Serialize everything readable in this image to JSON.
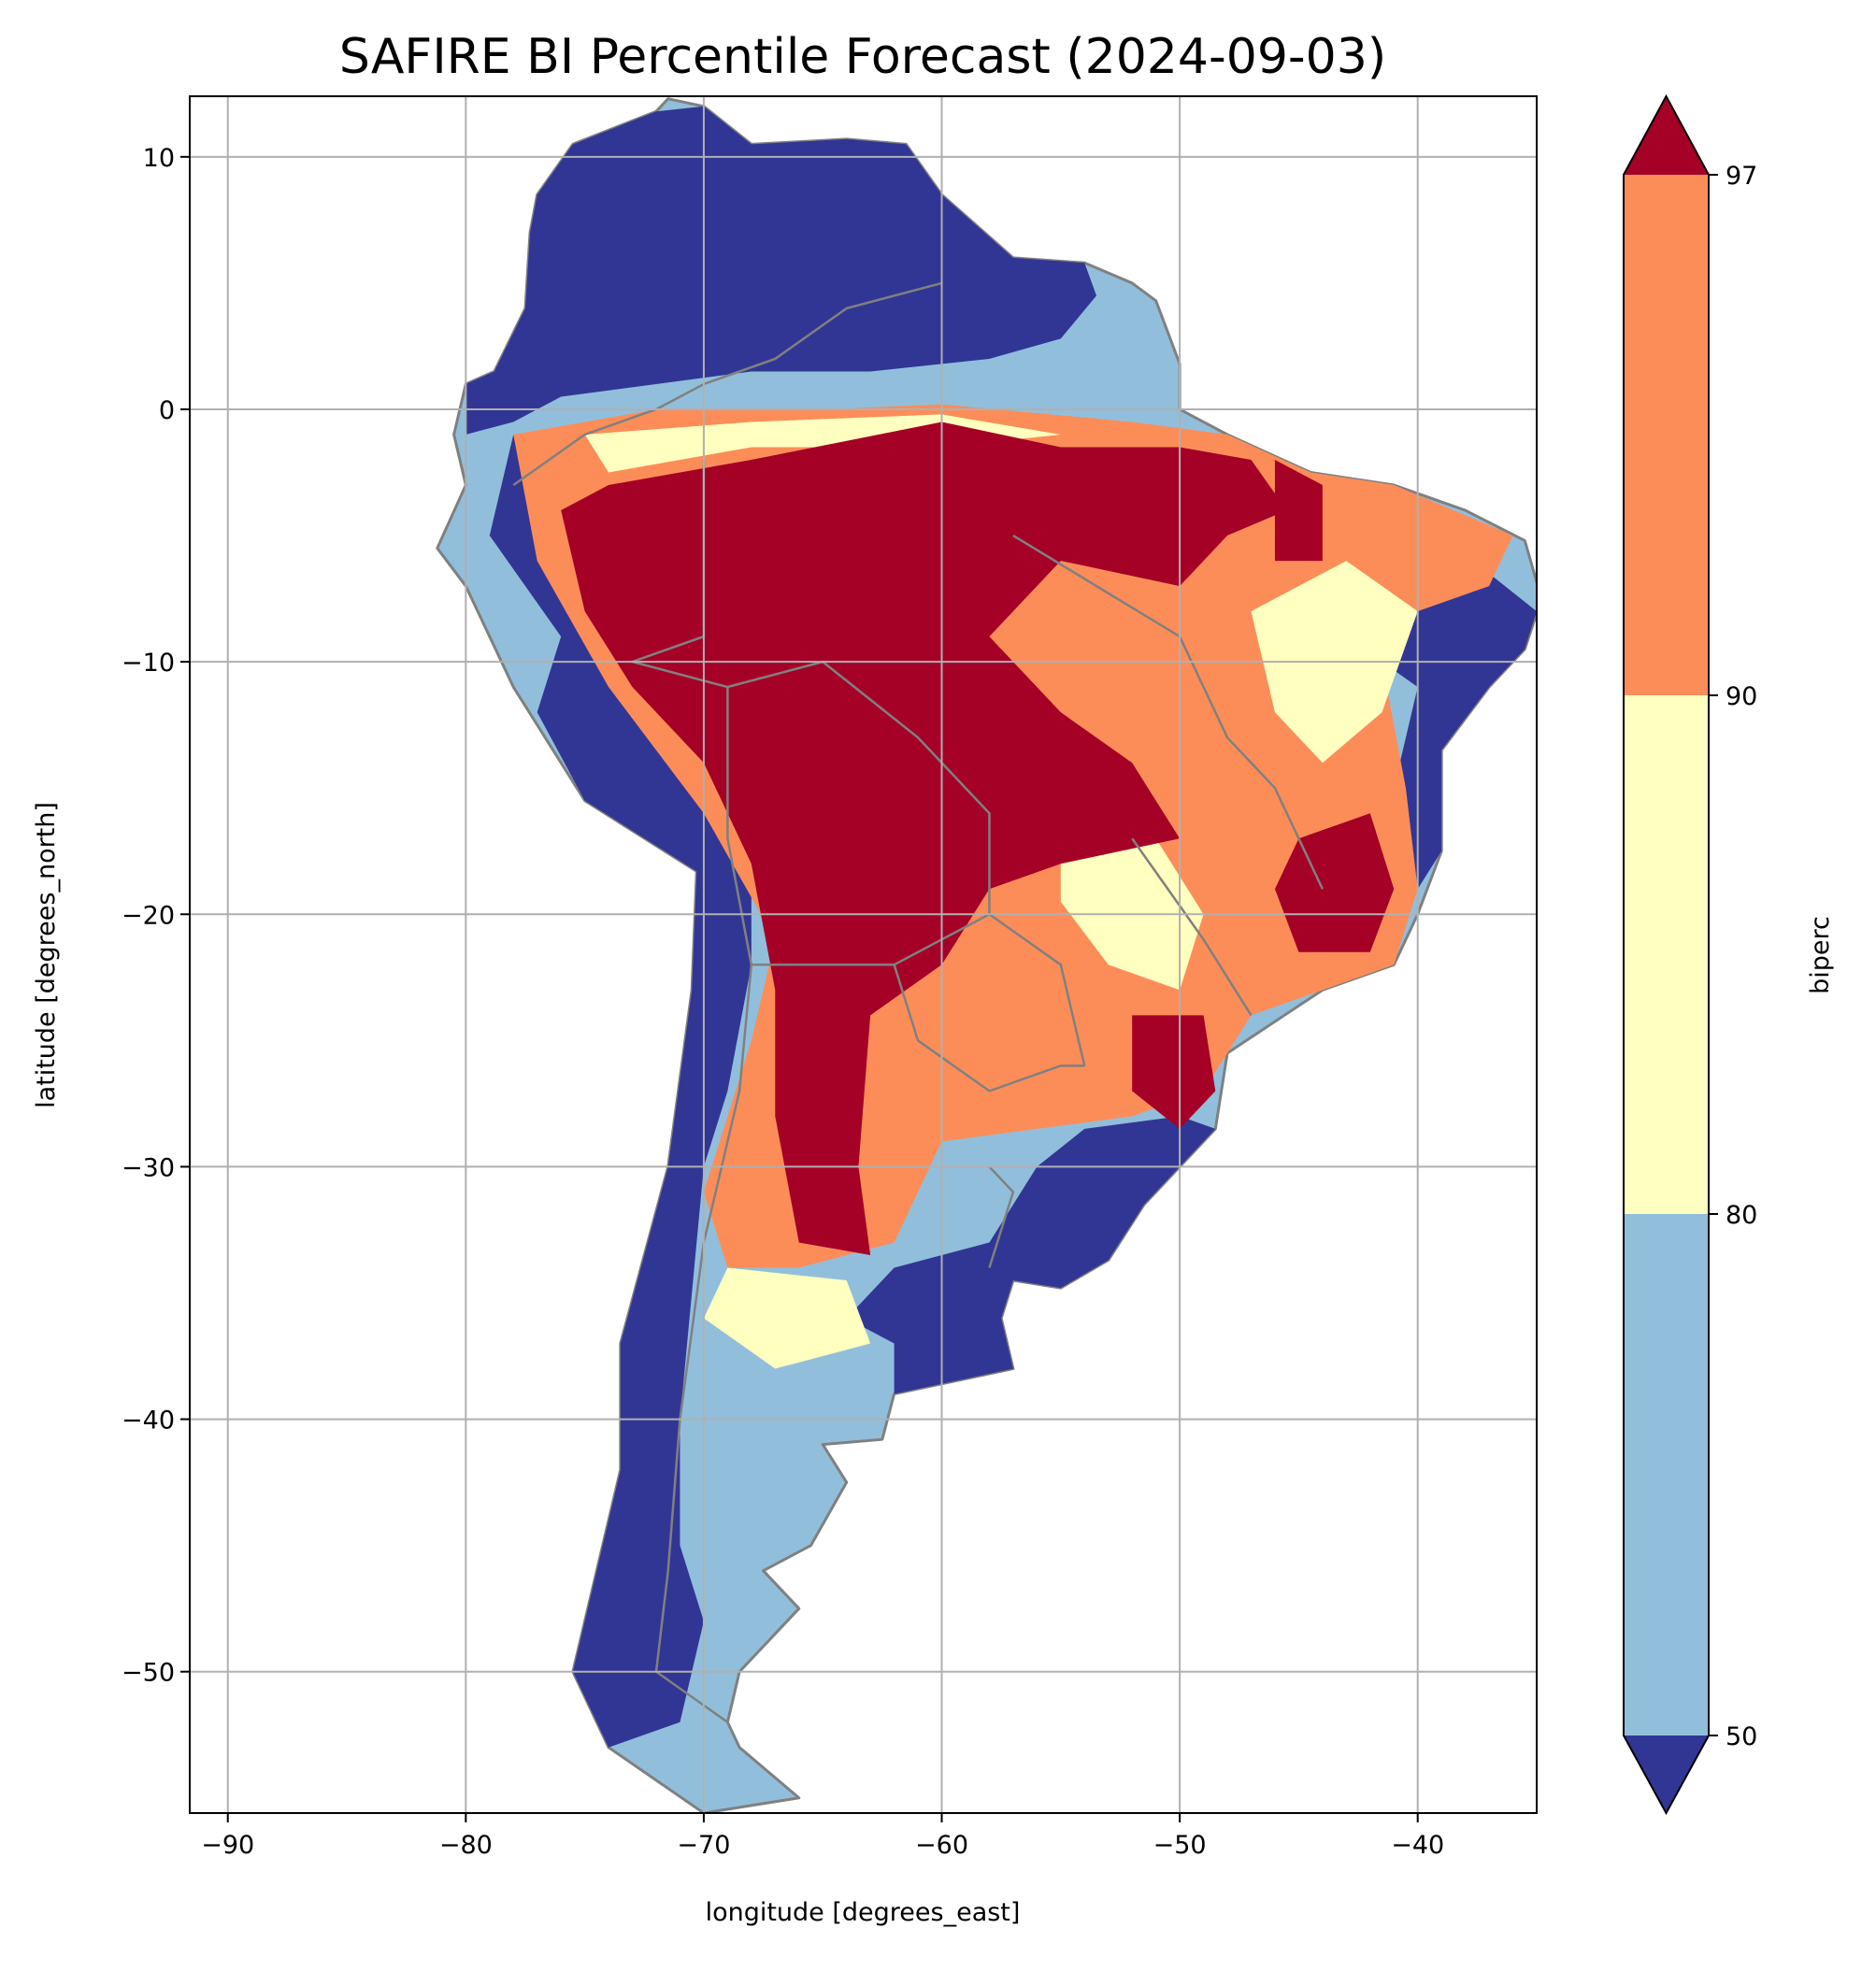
{
  "chart_data": {
    "type": "heatmap",
    "title": "SAFIRE BI Percentile Forecast (2024-09-03)",
    "xlabel": "longitude [degrees_east]",
    "ylabel": "latitude [degrees_north]",
    "xlim": [
      -91.6,
      -35.0
    ],
    "ylim": [
      -55.6,
      12.4
    ],
    "xticks": [
      -90,
      -80,
      -70,
      -60,
      -50,
      -40
    ],
    "yticks": [
      10,
      0,
      -10,
      -20,
      -30,
      -40,
      -50
    ],
    "xtick_labels": [
      "−90",
      "−80",
      "−70",
      "−60",
      "−50",
      "−40"
    ],
    "ytick_labels": [
      "10",
      "0",
      "−10",
      "−20",
      "−30",
      "−40",
      "−50"
    ],
    "grid": true,
    "colorbar": {
      "label": "biperc",
      "levels": [
        50,
        80,
        90,
        97
      ],
      "tick_labels": [
        "50",
        "80",
        "90",
        "97"
      ],
      "extend": "both",
      "colors": {
        "under": "#313695",
        "b50_80": "#91bfdb",
        "b80_90": "#ffffbf",
        "b90_97": "#fc8d59",
        "over": "#a50026"
      }
    },
    "colors": {
      "border": "#808080",
      "grid": "#b0b0b0"
    },
    "regions": [
      {
        "name": "continent",
        "class": "b50_80",
        "points": [
          [
            -77,
            8.5
          ],
          [
            -75.5,
            10.5
          ],
          [
            -72,
            11.8
          ],
          [
            -71.5,
            12.3
          ],
          [
            -70,
            12
          ],
          [
            -68,
            10.5
          ],
          [
            -64,
            10.7
          ],
          [
            -61.5,
            10.5
          ],
          [
            -60,
            8.5
          ],
          [
            -57,
            6
          ],
          [
            -54,
            5.8
          ],
          [
            -52,
            5
          ],
          [
            -51,
            4.3
          ],
          [
            -50,
            1.8
          ],
          [
            -50,
            0
          ],
          [
            -48,
            -1
          ],
          [
            -44.5,
            -2.5
          ],
          [
            -41,
            -3
          ],
          [
            -38,
            -4
          ],
          [
            -35.5,
            -5.2
          ],
          [
            -34.8,
            -7.5
          ],
          [
            -35.5,
            -9.5
          ],
          [
            -37,
            -11
          ],
          [
            -39,
            -13.5
          ],
          [
            -39,
            -17.5
          ],
          [
            -40,
            -20
          ],
          [
            -41,
            -22
          ],
          [
            -44,
            -23
          ],
          [
            -48,
            -25.5
          ],
          [
            -48.5,
            -28.5
          ],
          [
            -50,
            -30
          ],
          [
            -51.5,
            -31.5
          ],
          [
            -53,
            -33.7
          ],
          [
            -55,
            -34.8
          ],
          [
            -57,
            -34.5
          ],
          [
            -57.5,
            -36
          ],
          [
            -57,
            -38
          ],
          [
            -62,
            -39
          ],
          [
            -62.5,
            -40.8
          ],
          [
            -65,
            -41
          ],
          [
            -64,
            -42.5
          ],
          [
            -65.5,
            -45
          ],
          [
            -67.5,
            -46
          ],
          [
            -66,
            -47.5
          ],
          [
            -68.5,
            -50
          ],
          [
            -69,
            -52
          ],
          [
            -68.5,
            -53
          ],
          [
            -66,
            -55
          ],
          [
            -70,
            -55.6
          ],
          [
            -74,
            -53
          ],
          [
            -75.5,
            -50
          ],
          [
            -74.5,
            -46
          ],
          [
            -73.5,
            -42
          ],
          [
            -73.5,
            -37
          ],
          [
            -71.5,
            -30
          ],
          [
            -70.5,
            -23
          ],
          [
            -70.3,
            -18.3
          ],
          [
            -75,
            -15.5
          ],
          [
            -78,
            -11
          ],
          [
            -80,
            -7
          ],
          [
            -81.2,
            -5.5
          ],
          [
            -80,
            -3
          ],
          [
            -80.5,
            -1
          ],
          [
            -80,
            1
          ],
          [
            -78.8,
            1.5
          ],
          [
            -77.5,
            4
          ],
          [
            -77.3,
            7
          ]
        ]
      },
      {
        "name": "north",
        "class": "under",
        "points": [
          [
            -77,
            8.5
          ],
          [
            -75.5,
            10.5
          ],
          [
            -72,
            11.8
          ],
          [
            -70,
            12
          ],
          [
            -68,
            10.5
          ],
          [
            -64,
            10.7
          ],
          [
            -61.5,
            10.5
          ],
          [
            -60,
            8.5
          ],
          [
            -57,
            6
          ],
          [
            -54,
            5.8
          ],
          [
            -53.5,
            4.5
          ],
          [
            -55,
            2.8
          ],
          [
            -58,
            2
          ],
          [
            -63,
            1.5
          ],
          [
            -68,
            1.5
          ],
          [
            -72,
            1
          ],
          [
            -76,
            0.5
          ],
          [
            -78,
            -0.5
          ],
          [
            -80,
            -1
          ],
          [
            -80,
            1
          ],
          [
            -78.8,
            1.5
          ],
          [
            -77.5,
            4
          ],
          [
            -77.3,
            7
          ]
        ]
      },
      {
        "name": "andes",
        "class": "under",
        "points": [
          [
            -78,
            -1
          ],
          [
            -77,
            -5
          ],
          [
            -74,
            -10
          ],
          [
            -70,
            -15
          ],
          [
            -68,
            -17
          ],
          [
            -68,
            -22
          ],
          [
            -69,
            -27
          ],
          [
            -70,
            -30
          ],
          [
            -70.5,
            -35
          ],
          [
            -71,
            -40
          ],
          [
            -71,
            -45
          ],
          [
            -70,
            -48
          ],
          [
            -71,
            -52
          ],
          [
            -74,
            -53
          ],
          [
            -75.5,
            -50
          ],
          [
            -74.5,
            -46
          ],
          [
            -73.5,
            -42
          ],
          [
            -73.5,
            -37
          ],
          [
            -71.5,
            -30
          ],
          [
            -70.5,
            -23
          ],
          [
            -70.3,
            -18.3
          ],
          [
            -75,
            -15.5
          ],
          [
            -77,
            -12
          ],
          [
            -76,
            -9
          ],
          [
            -79,
            -5
          ]
        ]
      },
      {
        "name": "pampas",
        "class": "under",
        "points": [
          [
            -62,
            -34
          ],
          [
            -58,
            -33
          ],
          [
            -56,
            -30
          ],
          [
            -54,
            -28.5
          ],
          [
            -50,
            -28
          ],
          [
            -48.5,
            -28.5
          ],
          [
            -50,
            -30
          ],
          [
            -51.5,
            -31.5
          ],
          [
            -53,
            -33.7
          ],
          [
            -55,
            -34.8
          ],
          [
            -57,
            -34.5
          ],
          [
            -57.5,
            -36
          ],
          [
            -57,
            -38
          ],
          [
            -62,
            -39
          ],
          [
            -62,
            -37
          ],
          [
            -64,
            -36
          ]
        ]
      },
      {
        "name": "bahia",
        "class": "under",
        "points": [
          [
            -40,
            -8
          ],
          [
            -37,
            -6.5
          ],
          [
            -35,
            -8
          ],
          [
            -35.5,
            -9.5
          ],
          [
            -37,
            -11
          ],
          [
            -39,
            -13.5
          ],
          [
            -39,
            -17.5
          ],
          [
            -40,
            -19
          ],
          [
            -41,
            -15
          ],
          [
            -40,
            -11
          ],
          [
            -41.5,
            -10
          ]
        ]
      },
      {
        "name": "central",
        "class": "b90_97",
        "points": [
          [
            -78,
            -1
          ],
          [
            -72,
            0
          ],
          [
            -65,
            0
          ],
          [
            -60,
            0.2
          ],
          [
            -52,
            -0.5
          ],
          [
            -48,
            -1
          ],
          [
            -44.5,
            -2.5
          ],
          [
            -41,
            -3
          ],
          [
            -36,
            -5
          ],
          [
            -37,
            -7
          ],
          [
            -40,
            -8
          ],
          [
            -41.5,
            -10
          ],
          [
            -40.5,
            -15
          ],
          [
            -40,
            -19
          ],
          [
            -41,
            -22
          ],
          [
            -44,
            -23
          ],
          [
            -47,
            -24
          ],
          [
            -49,
            -27
          ],
          [
            -52,
            -28
          ],
          [
            -56,
            -28.5
          ],
          [
            -60,
            -29
          ],
          [
            -62,
            -33
          ],
          [
            -66,
            -34
          ],
          [
            -69,
            -34
          ],
          [
            -70,
            -31
          ],
          [
            -68,
            -25
          ],
          [
            -67,
            -21
          ],
          [
            -70,
            -16
          ],
          [
            -74,
            -11
          ],
          [
            -77,
            -6
          ]
        ]
      },
      {
        "name": "yellow-ne",
        "class": "b80_90",
        "points": [
          [
            -47,
            -8
          ],
          [
            -43,
            -6
          ],
          [
            -40,
            -8
          ],
          [
            -41.5,
            -12
          ],
          [
            -44,
            -14
          ],
          [
            -46,
            -12
          ]
        ]
      },
      {
        "name": "yellow-se",
        "class": "b80_90",
        "points": [
          [
            -55,
            -17
          ],
          [
            -51,
            -17
          ],
          [
            -49,
            -20
          ],
          [
            -50,
            -23
          ],
          [
            -53,
            -22
          ],
          [
            -55,
            -19.5
          ]
        ]
      },
      {
        "name": "yellow-s",
        "class": "b80_90",
        "points": [
          [
            -69,
            -34
          ],
          [
            -64,
            -34.5
          ],
          [
            -63,
            -37
          ],
          [
            -67,
            -38
          ],
          [
            -70,
            -36
          ]
        ]
      },
      {
        "name": "yellow-north-band",
        "class": "b80_90",
        "points": [
          [
            -75,
            -1
          ],
          [
            -68,
            -0.5
          ],
          [
            -60,
            -0.2
          ],
          [
            -55,
            -1
          ],
          [
            -60,
            -1.5
          ],
          [
            -68,
            -1.5
          ],
          [
            -74,
            -2.5
          ]
        ]
      },
      {
        "name": "core",
        "class": "over",
        "points": [
          [
            -74,
            -3
          ],
          [
            -68,
            -2
          ],
          [
            -60,
            -0.5
          ],
          [
            -55,
            -1.5
          ],
          [
            -50,
            -1.5
          ],
          [
            -47,
            -2
          ],
          [
            -45.5,
            -4
          ],
          [
            -48,
            -5
          ],
          [
            -50,
            -7
          ],
          [
            -55,
            -6
          ],
          [
            -58,
            -9
          ],
          [
            -55,
            -12
          ],
          [
            -52,
            -14
          ],
          [
            -50,
            -17
          ],
          [
            -55,
            -18
          ],
          [
            -58,
            -19
          ],
          [
            -60,
            -22
          ],
          [
            -63,
            -24
          ],
          [
            -63.5,
            -30
          ],
          [
            -63,
            -33.5
          ],
          [
            -66,
            -33
          ],
          [
            -67,
            -28
          ],
          [
            -67,
            -23
          ],
          [
            -68,
            -18
          ],
          [
            -70,
            -14
          ],
          [
            -73,
            -11
          ],
          [
            -75,
            -8
          ],
          [
            -76,
            -4
          ]
        ]
      },
      {
        "name": "red-se",
        "class": "over",
        "points": [
          [
            -45,
            -17
          ],
          [
            -42,
            -16
          ],
          [
            -41,
            -19
          ],
          [
            -42,
            -21.5
          ],
          [
            -45,
            -21.5
          ],
          [
            -46,
            -19
          ]
        ]
      },
      {
        "name": "red-s",
        "class": "over",
        "points": [
          [
            -52,
            -24
          ],
          [
            -49,
            -24
          ],
          [
            -48.5,
            -27
          ],
          [
            -50,
            -28.5
          ],
          [
            -52,
            -27
          ]
        ]
      },
      {
        "name": "red-ne",
        "class": "over",
        "points": [
          [
            -46,
            -2
          ],
          [
            -44,
            -3
          ],
          [
            -44,
            -6
          ],
          [
            -46,
            -6
          ]
        ]
      }
    ],
    "borders": [
      [
        [
          -60,
          5
        ],
        [
          -64,
          4
        ],
        [
          -67,
          2
        ],
        [
          -70,
          1
        ],
        [
          -72,
          0
        ],
        [
          -75,
          -1
        ],
        [
          -78,
          -3
        ]
      ],
      [
        [
          -70,
          -2
        ],
        [
          -70,
          -9
        ],
        [
          -73,
          -10
        ],
        [
          -69,
          -11
        ],
        [
          -65,
          -10
        ],
        [
          -61,
          -13
        ],
        [
          -58,
          -16
        ],
        [
          -58,
          -20
        ],
        [
          -55,
          -22
        ],
        [
          -54,
          -26
        ]
      ],
      [
        [
          -69,
          -11
        ],
        [
          -69,
          -17
        ],
        [
          -68,
          -22
        ],
        [
          -66,
          -22
        ],
        [
          -62,
          -22
        ],
        [
          -58,
          -20
        ]
      ],
      [
        [
          -62,
          -22
        ],
        [
          -61,
          -25
        ],
        [
          -58,
          -27
        ],
        [
          -55,
          -26
        ],
        [
          -54,
          -26
        ]
      ],
      [
        [
          -58,
          -30
        ],
        [
          -57,
          -31
        ],
        [
          -58,
          -34
        ]
      ],
      [
        [
          -68,
          -22
        ],
        [
          -68.5,
          -27
        ],
        [
          -70,
          -33
        ],
        [
          -71,
          -40
        ],
        [
          -71.5,
          -46
        ],
        [
          -72,
          -50
        ],
        [
          -69,
          -52
        ]
      ],
      [
        [
          -57,
          -5
        ],
        [
          -50,
          -9
        ],
        [
          -48,
          -13
        ],
        [
          -46,
          -15
        ],
        [
          -44,
          -19
        ]
      ],
      [
        [
          -52,
          -17
        ],
        [
          -49,
          -21
        ],
        [
          -47,
          -24
        ]
      ]
    ]
  }
}
